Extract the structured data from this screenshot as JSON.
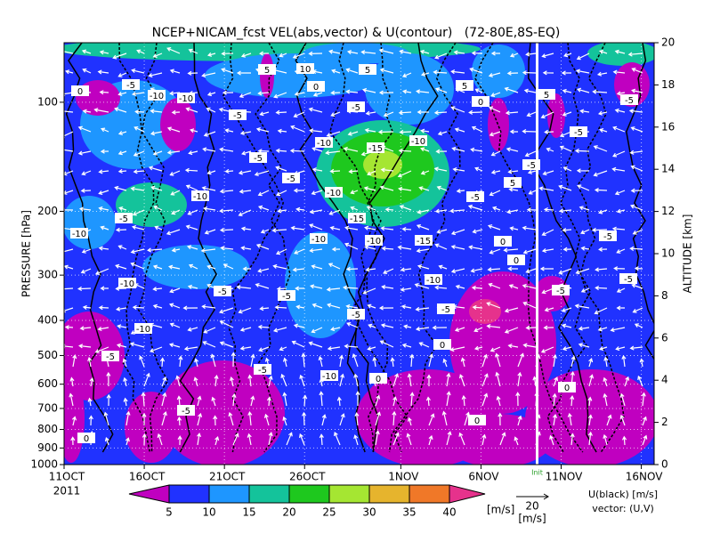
{
  "chart_data": {
    "type": "contour",
    "title": "NCEP+NICAM_fcst VEL(abs,vector) & U(contour)   (72-80E,8S-EQ)",
    "x_tick_note": "2011",
    "ylabel": "PRESSURE [hPa]",
    "y2label": "ALTITUDE [km]",
    "xlim": [
      0,
      36.8
    ],
    "xticks": [
      {
        "value": 0,
        "label": "11OCT"
      },
      {
        "value": 5,
        "label": "16OCT"
      },
      {
        "value": 10,
        "label": "21OCT"
      },
      {
        "value": 15,
        "label": "26OCT"
      },
      {
        "value": 21,
        "label": "1NOV"
      },
      {
        "value": 26,
        "label": "6NOV"
      },
      {
        "value": 31,
        "label": "11NOV"
      },
      {
        "value": 36,
        "label": "16NOV"
      }
    ],
    "ylim": [
      1000,
      68.5
    ],
    "log_y": true,
    "yticks": [
      100,
      200,
      300,
      400,
      500,
      600,
      700,
      800,
      900,
      1000
    ],
    "y2lim": [
      0,
      20
    ],
    "y2ticks": [
      0,
      2,
      4,
      6,
      8,
      10,
      12,
      14,
      16,
      18,
      20
    ],
    "grid": true,
    "forecast_start": {
      "value": 29.5,
      "label": "Init"
    },
    "colorbar": {
      "levels": [
        5,
        10,
        15,
        20,
        25,
        30,
        35,
        40
      ],
      "colors": [
        "#c000c0",
        "#2032ff",
        "#1e96ff",
        "#14c39b",
        "#1ec81e",
        "#a5e632",
        "#e6b42d",
        "#f07828",
        "#e6328c"
      ],
      "unit": "[m/s]"
    },
    "vector_key": {
      "value": 20,
      "unit": "[m/s]"
    },
    "legend_lines": [
      "U(black) [m/s]",
      "vector: (U,V)"
    ],
    "contour_labels": [
      -5,
      -10,
      -10,
      0,
      -5,
      5,
      10,
      5,
      0,
      5,
      -5,
      0,
      -10,
      -15,
      -10,
      -5,
      -5,
      -10,
      -10,
      -5,
      -10,
      -10,
      -15,
      -10,
      -15,
      -5,
      -5,
      5,
      -10,
      -5,
      -5,
      -10,
      -10,
      -5,
      -5,
      -5,
      -5,
      -10,
      0,
      0,
      0,
      0,
      -5,
      0,
      0,
      5,
      -5,
      -5,
      -5,
      0,
      -5,
      -5
    ]
  }
}
